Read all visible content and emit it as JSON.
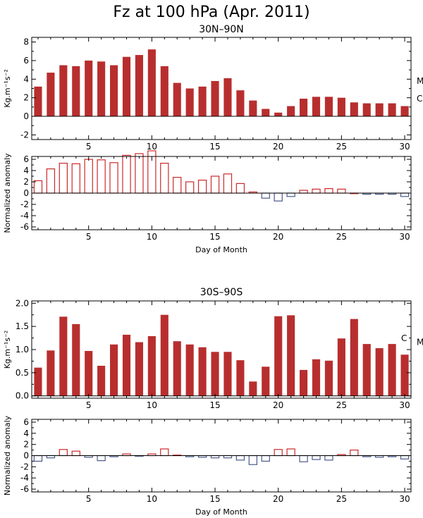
{
  "figure_title": "Fz at 100 hPa (Apr. 2011)",
  "colors": {
    "filled_bar": "#b82e2e",
    "positive_outline": "#cc2a2a",
    "negative_outline": "#4a5a8a"
  },
  "xlabel_day": "Day of Month",
  "chart_data": [
    {
      "type": "bar",
      "style": "filled",
      "title": "30N–90N",
      "ylabel": "Kg.m⁻¹s⁻²",
      "x": [
        1,
        2,
        3,
        4,
        5,
        6,
        7,
        8,
        9,
        10,
        11,
        12,
        13,
        14,
        15,
        16,
        17,
        18,
        19,
        20,
        21,
        22,
        23,
        24,
        25,
        26,
        27,
        28,
        29,
        30
      ],
      "values": [
        3.2,
        4.7,
        5.5,
        5.4,
        6.0,
        5.9,
        5.5,
        6.4,
        6.6,
        7.2,
        5.4,
        3.6,
        3.0,
        3.2,
        3.8,
        4.1,
        2.8,
        1.7,
        0.8,
        0.4,
        1.1,
        1.9,
        2.1,
        2.1,
        2.0,
        1.5,
        1.4,
        1.4,
        1.4,
        1.1
      ],
      "xlim": [
        0.5,
        30.5
      ],
      "ylim": [
        -2.5,
        8.5
      ],
      "yticks": [
        -2,
        0,
        2,
        4,
        6,
        8
      ],
      "xticks": [
        5,
        10,
        15,
        20,
        25,
        30
      ],
      "ref_marks": [
        {
          "label": "M",
          "value": 3.8
        },
        {
          "label": "C",
          "value": 1.9
        }
      ]
    },
    {
      "type": "bar",
      "style": "outline",
      "ylabel": "Normalized anomaly",
      "xlabel": "Day of Month",
      "x": [
        1,
        2,
        3,
        4,
        5,
        6,
        7,
        8,
        9,
        10,
        11,
        12,
        13,
        14,
        15,
        16,
        17,
        18,
        19,
        20,
        21,
        22,
        23,
        24,
        25,
        26,
        27,
        28,
        29,
        30
      ],
      "values": [
        2.2,
        4.3,
        5.3,
        5.2,
        6.0,
        5.9,
        5.4,
        6.7,
        7.0,
        7.5,
        5.3,
        2.8,
        2.0,
        2.3,
        3.0,
        3.4,
        1.7,
        0.2,
        -0.9,
        -1.4,
        -0.6,
        0.5,
        0.7,
        0.8,
        0.7,
        0.0,
        -0.2,
        -0.2,
        -0.2,
        -0.6
      ],
      "xlim": [
        0.5,
        30.5
      ],
      "ylim": [
        -6.5,
        6.5
      ],
      "yticks": [
        -6,
        -4,
        -2,
        0,
        2,
        4,
        6
      ],
      "xticks": [
        5,
        10,
        15,
        20,
        25,
        30
      ]
    },
    {
      "type": "bar",
      "style": "filled",
      "title": "30S–90S",
      "ylabel": "Kg.m⁻¹s⁻²",
      "x": [
        1,
        2,
        3,
        4,
        5,
        6,
        7,
        8,
        9,
        10,
        11,
        12,
        13,
        14,
        15,
        16,
        17,
        18,
        19,
        20,
        21,
        22,
        23,
        24,
        25,
        26,
        27,
        28,
        29,
        30
      ],
      "values": [
        0.61,
        0.98,
        1.71,
        1.55,
        0.97,
        0.65,
        1.11,
        1.32,
        1.16,
        1.29,
        1.75,
        1.18,
        1.11,
        1.05,
        0.95,
        0.95,
        0.77,
        0.31,
        0.63,
        1.72,
        1.74,
        0.56,
        0.79,
        0.76,
        1.24,
        1.66,
        1.12,
        1.03,
        1.12,
        0.89
      ],
      "xlim": [
        0.5,
        30.5
      ],
      "ylim": [
        -0.05,
        2.05
      ],
      "yticks": [
        0.0,
        0.5,
        1.0,
        1.5,
        2.0
      ],
      "ytick_labels": [
        "0.0",
        "0.5",
        "1.0",
        "1.5",
        "2.0"
      ],
      "xticks": [
        5,
        10,
        15,
        20,
        25,
        30
      ],
      "ref_marks": [
        {
          "label": "C",
          "value": 1.24
        },
        {
          "label": "M",
          "value": 1.16
        }
      ]
    },
    {
      "type": "bar",
      "style": "outline",
      "ylabel": "Normalized anomaly",
      "xlabel": "Day of Month",
      "x": [
        1,
        2,
        3,
        4,
        5,
        6,
        7,
        8,
        9,
        10,
        11,
        12,
        13,
        14,
        15,
        16,
        17,
        18,
        19,
        20,
        21,
        22,
        23,
        24,
        25,
        26,
        27,
        28,
        29,
        30
      ],
      "values": [
        -1.0,
        -0.4,
        1.1,
        0.8,
        -0.3,
        -0.9,
        -0.2,
        0.3,
        -0.1,
        0.3,
        1.2,
        0.1,
        -0.2,
        -0.3,
        -0.4,
        -0.4,
        -0.8,
        -1.6,
        -1.0,
        1.1,
        1.2,
        -1.1,
        -0.7,
        -0.8,
        0.2,
        1.0,
        -0.2,
        -0.3,
        -0.2,
        -0.6
      ],
      "xlim": [
        0.5,
        30.5
      ],
      "ylim": [
        -6.5,
        6.5
      ],
      "yticks": [
        -6,
        -4,
        -2,
        0,
        2,
        4,
        6
      ],
      "xticks": [
        5,
        10,
        15,
        20,
        25,
        30
      ]
    }
  ]
}
